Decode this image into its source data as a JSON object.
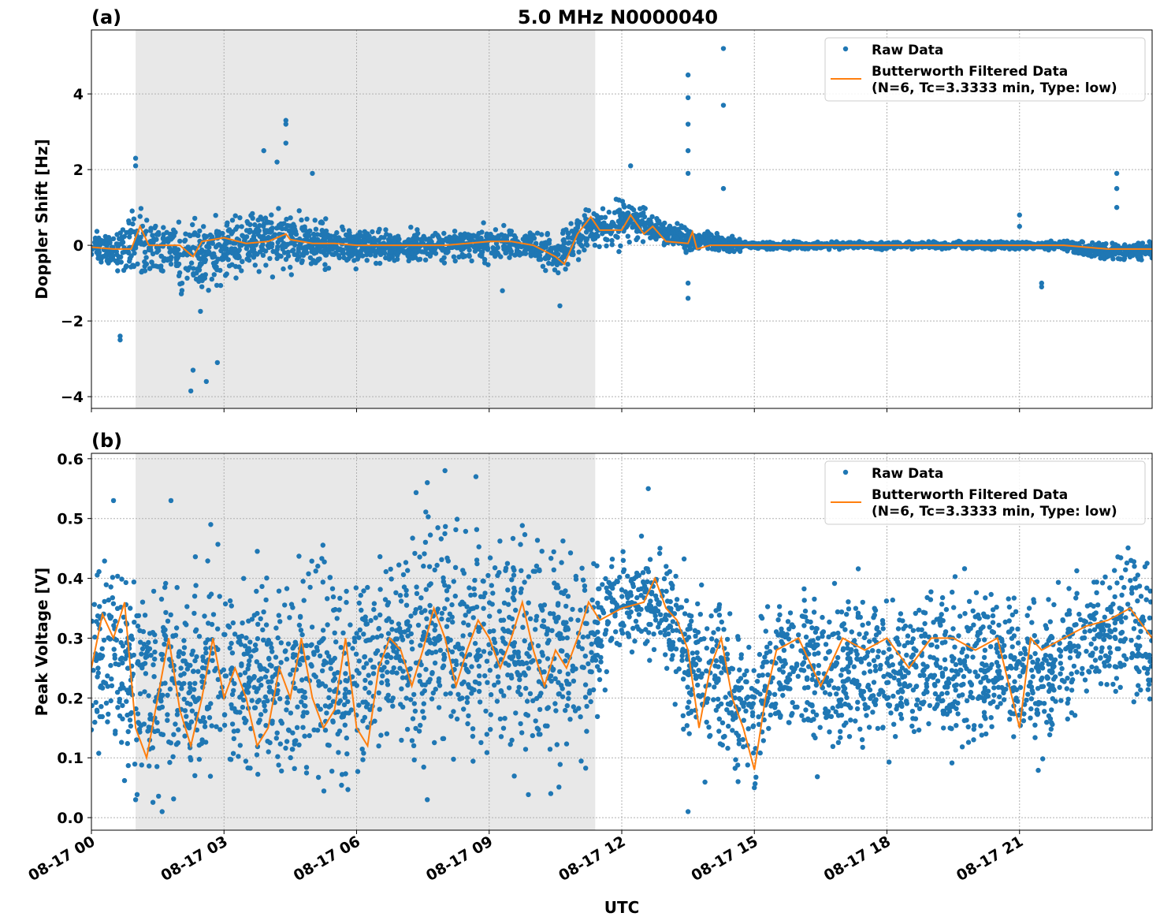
{
  "title": "5.0 MHz N0000040",
  "xlabel": "UTC",
  "colors": {
    "raw": "#1f77b4",
    "filtered": "#ff7f0e",
    "shade": "#e8e8e8"
  },
  "legend": {
    "raw": "Raw Data",
    "filtered_line1": "Butterworth Filtered Data",
    "filtered_line2": "(N=6, Tc=3.3333 min, Type: low)",
    "placement": "top-right"
  },
  "chart_data": [
    {
      "type": "scatter",
      "panel_label": "(a)",
      "ylabel": "Doppler Shift [Hz]",
      "x_unit": "hours UTC since 08-17 00",
      "xlim": [
        0,
        24
      ],
      "ylim": [
        -4.31,
        5.69
      ],
      "grid": true,
      "xticks": [
        {
          "v": 0,
          "label": "08-17 00"
        },
        {
          "v": 3,
          "label": "08-17 03"
        },
        {
          "v": 6,
          "label": "08-17 06"
        },
        {
          "v": 9,
          "label": "08-17 09"
        },
        {
          "v": 12,
          "label": "08-17 12"
        },
        {
          "v": 15,
          "label": "08-17 15"
        },
        {
          "v": 18,
          "label": "08-17 18"
        },
        {
          "v": 21,
          "label": "08-17 21"
        }
      ],
      "yticks": [
        {
          "v": -4,
          "label": "−4"
        },
        {
          "v": -2,
          "label": "−2"
        },
        {
          "v": 0,
          "label": "0"
        },
        {
          "v": 2,
          "label": "2"
        },
        {
          "v": 4,
          "label": "4"
        }
      ],
      "shaded_interval": [
        1.0,
        11.4
      ],
      "filtered": [
        [
          0,
          -0.05
        ],
        [
          0.5,
          -0.1
        ],
        [
          0.9,
          -0.1
        ],
        [
          1.1,
          0.5
        ],
        [
          1.3,
          0.0
        ],
        [
          1.5,
          0.0
        ],
        [
          2,
          0.0
        ],
        [
          2.3,
          -0.3
        ],
        [
          2.5,
          0.1
        ],
        [
          3,
          0.2
        ],
        [
          3.5,
          0.05
        ],
        [
          4,
          0.1
        ],
        [
          4.4,
          0.3
        ],
        [
          4.5,
          0.15
        ],
        [
          5,
          0.05
        ],
        [
          5.5,
          0.05
        ],
        [
          6,
          0.0
        ],
        [
          6.5,
          0.0
        ],
        [
          7,
          0.0
        ],
        [
          7.5,
          0.0
        ],
        [
          8,
          0.0
        ],
        [
          8.5,
          0.05
        ],
        [
          9,
          0.1
        ],
        [
          9.5,
          0.1
        ],
        [
          10,
          0.0
        ],
        [
          10.5,
          -0.3
        ],
        [
          10.7,
          -0.5
        ],
        [
          11,
          0.3
        ],
        [
          11.3,
          0.75
        ],
        [
          11.5,
          0.4
        ],
        [
          12,
          0.4
        ],
        [
          12.2,
          0.8
        ],
        [
          12.5,
          0.3
        ],
        [
          12.7,
          0.5
        ],
        [
          13,
          0.1
        ],
        [
          13.5,
          0.05
        ],
        [
          13.6,
          0.35
        ],
        [
          13.7,
          -0.1
        ],
        [
          14,
          0.0
        ],
        [
          14.5,
          0.0
        ],
        [
          15,
          0.0
        ],
        [
          16,
          0.0
        ],
        [
          17,
          0.0
        ],
        [
          18,
          0.0
        ],
        [
          19,
          0.0
        ],
        [
          20,
          0.0
        ],
        [
          21,
          0.0
        ],
        [
          22,
          0.0
        ],
        [
          22.5,
          -0.05
        ],
        [
          23,
          -0.1
        ],
        [
          23.5,
          -0.1
        ],
        [
          24,
          -0.1
        ]
      ],
      "raw_envelope": [
        [
          0,
          -0.5,
          0.4
        ],
        [
          0.5,
          -0.6,
          0.3
        ],
        [
          1,
          -1.0,
          1.0
        ],
        [
          1.5,
          -0.8,
          0.6
        ],
        [
          2,
          -1.2,
          0.7
        ],
        [
          2.5,
          -1.5,
          0.8
        ],
        [
          3,
          -1.0,
          0.8
        ],
        [
          3.5,
          -0.8,
          0.9
        ],
        [
          4,
          -0.7,
          1.0
        ],
        [
          4.5,
          -0.6,
          1.0
        ],
        [
          5,
          -0.6,
          0.7
        ],
        [
          5.5,
          -0.5,
          0.5
        ],
        [
          6,
          -0.5,
          0.5
        ],
        [
          6.5,
          -0.4,
          0.4
        ],
        [
          7,
          -0.5,
          0.4
        ],
        [
          7.5,
          -0.4,
          0.4
        ],
        [
          8,
          -0.4,
          0.4
        ],
        [
          8.5,
          -0.4,
          0.5
        ],
        [
          9,
          -0.4,
          0.5
        ],
        [
          9.5,
          -0.4,
          0.5
        ],
        [
          10,
          -0.5,
          0.4
        ],
        [
          10.5,
          -0.8,
          0.3
        ],
        [
          11,
          -0.3,
          0.8
        ],
        [
          11.5,
          0.0,
          0.9
        ],
        [
          12,
          -0.1,
          1.4
        ],
        [
          12.5,
          0.0,
          1.0
        ],
        [
          13,
          0.0,
          0.6
        ],
        [
          13.5,
          -0.2,
          0.5
        ],
        [
          14,
          -0.1,
          0.3
        ],
        [
          14.5,
          -0.2,
          0.2
        ],
        [
          15,
          -0.1,
          0.1
        ],
        [
          18,
          -0.1,
          0.1
        ],
        [
          21,
          -0.1,
          0.1
        ],
        [
          22,
          -0.1,
          0.1
        ],
        [
          22.5,
          -0.3,
          0.1
        ],
        [
          23,
          -0.4,
          0.1
        ],
        [
          24,
          -0.4,
          0.1
        ]
      ],
      "raw_outliers": [
        [
          1.0,
          2.3
        ],
        [
          1.0,
          2.1
        ],
        [
          0.65,
          -2.4
        ],
        [
          0.65,
          -2.5
        ],
        [
          2.25,
          -3.85
        ],
        [
          2.3,
          -3.3
        ],
        [
          2.6,
          -3.6
        ],
        [
          2.85,
          -3.1
        ],
        [
          3.9,
          2.5
        ],
        [
          4.4,
          3.3
        ],
        [
          4.4,
          3.2
        ],
        [
          4.4,
          2.7
        ],
        [
          4.2,
          2.2
        ],
        [
          5.0,
          1.9
        ],
        [
          9.3,
          -1.2
        ],
        [
          10.6,
          -1.6
        ],
        [
          12.2,
          2.1
        ],
        [
          13.5,
          4.5
        ],
        [
          13.5,
          3.9
        ],
        [
          13.5,
          3.2
        ],
        [
          13.5,
          2.5
        ],
        [
          13.5,
          1.9
        ],
        [
          13.5,
          -1.0
        ],
        [
          13.5,
          -1.4
        ],
        [
          14.3,
          5.2
        ],
        [
          14.3,
          3.7
        ],
        [
          14.3,
          1.5
        ],
        [
          21.0,
          0.8
        ],
        [
          21.0,
          0.5
        ],
        [
          21.5,
          -1.0
        ],
        [
          21.5,
          -1.1
        ],
        [
          23.2,
          1.9
        ],
        [
          23.2,
          1.5
        ],
        [
          23.2,
          1.0
        ]
      ]
    },
    {
      "type": "scatter",
      "panel_label": "(b)",
      "ylabel": "Peak Voltage [V]",
      "x_unit": "hours UTC since 08-17 00",
      "xlim": [
        0,
        24
      ],
      "ylim": [
        -0.021,
        0.609
      ],
      "grid": true,
      "xticks": [
        {
          "v": 0,
          "label": "08-17 00"
        },
        {
          "v": 3,
          "label": "08-17 03"
        },
        {
          "v": 6,
          "label": "08-17 06"
        },
        {
          "v": 9,
          "label": "08-17 09"
        },
        {
          "v": 12,
          "label": "08-17 12"
        },
        {
          "v": 15,
          "label": "08-17 15"
        },
        {
          "v": 18,
          "label": "08-17 18"
        },
        {
          "v": 21,
          "label": "08-17 21"
        }
      ],
      "yticks": [
        {
          "v": 0.0,
          "label": "0.0"
        },
        {
          "v": 0.1,
          "label": "0.1"
        },
        {
          "v": 0.2,
          "label": "0.2"
        },
        {
          "v": 0.3,
          "label": "0.3"
        },
        {
          "v": 0.4,
          "label": "0.4"
        },
        {
          "v": 0.5,
          "label": "0.5"
        },
        {
          "v": 0.6,
          "label": "0.6"
        }
      ],
      "shaded_interval": [
        1.0,
        11.4
      ],
      "filtered": [
        [
          0,
          0.25
        ],
        [
          0.25,
          0.34
        ],
        [
          0.5,
          0.3
        ],
        [
          0.75,
          0.36
        ],
        [
          1,
          0.15
        ],
        [
          1.25,
          0.1
        ],
        [
          1.5,
          0.2
        ],
        [
          1.75,
          0.3
        ],
        [
          2,
          0.18
        ],
        [
          2.25,
          0.12
        ],
        [
          2.5,
          0.2
        ],
        [
          2.75,
          0.3
        ],
        [
          3,
          0.2
        ],
        [
          3.25,
          0.25
        ],
        [
          3.5,
          0.2
        ],
        [
          3.75,
          0.12
        ],
        [
          4,
          0.15
        ],
        [
          4.25,
          0.25
        ],
        [
          4.5,
          0.2
        ],
        [
          4.75,
          0.3
        ],
        [
          5,
          0.2
        ],
        [
          5.25,
          0.15
        ],
        [
          5.5,
          0.18
        ],
        [
          5.75,
          0.3
        ],
        [
          6,
          0.15
        ],
        [
          6.25,
          0.12
        ],
        [
          6.5,
          0.25
        ],
        [
          6.75,
          0.3
        ],
        [
          7,
          0.28
        ],
        [
          7.25,
          0.22
        ],
        [
          7.5,
          0.28
        ],
        [
          7.75,
          0.35
        ],
        [
          8,
          0.3
        ],
        [
          8.25,
          0.22
        ],
        [
          8.5,
          0.28
        ],
        [
          8.75,
          0.33
        ],
        [
          9,
          0.3
        ],
        [
          9.25,
          0.25
        ],
        [
          9.5,
          0.3
        ],
        [
          9.75,
          0.36
        ],
        [
          10,
          0.28
        ],
        [
          10.25,
          0.22
        ],
        [
          10.5,
          0.28
        ],
        [
          10.75,
          0.25
        ],
        [
          11,
          0.3
        ],
        [
          11.25,
          0.36
        ],
        [
          11.5,
          0.33
        ],
        [
          12,
          0.35
        ],
        [
          12.5,
          0.36
        ],
        [
          12.75,
          0.4
        ],
        [
          13,
          0.35
        ],
        [
          13.25,
          0.33
        ],
        [
          13.5,
          0.28
        ],
        [
          13.75,
          0.15
        ],
        [
          14,
          0.25
        ],
        [
          14.25,
          0.3
        ],
        [
          14.5,
          0.2
        ],
        [
          14.75,
          0.15
        ],
        [
          15,
          0.08
        ],
        [
          15.25,
          0.2
        ],
        [
          15.5,
          0.28
        ],
        [
          16,
          0.3
        ],
        [
          16.5,
          0.22
        ],
        [
          17,
          0.3
        ],
        [
          17.5,
          0.28
        ],
        [
          18,
          0.3
        ],
        [
          18.5,
          0.25
        ],
        [
          19,
          0.3
        ],
        [
          19.5,
          0.3
        ],
        [
          20,
          0.28
        ],
        [
          20.5,
          0.3
        ],
        [
          21,
          0.15
        ],
        [
          21.25,
          0.3
        ],
        [
          21.5,
          0.28
        ],
        [
          22,
          0.3
        ],
        [
          22.5,
          0.32
        ],
        [
          23,
          0.33
        ],
        [
          23.5,
          0.35
        ],
        [
          24,
          0.3
        ]
      ],
      "raw_envelope": [
        [
          0,
          0.08,
          0.45
        ],
        [
          0.5,
          0.1,
          0.47
        ],
        [
          1,
          0.03,
          0.4
        ],
        [
          1.5,
          0.03,
          0.42
        ],
        [
          2,
          0.05,
          0.4
        ],
        [
          2.5,
          0.05,
          0.43
        ],
        [
          3,
          0.06,
          0.42
        ],
        [
          3.5,
          0.06,
          0.42
        ],
        [
          4,
          0.05,
          0.4
        ],
        [
          4.5,
          0.05,
          0.42
        ],
        [
          5,
          0.05,
          0.42
        ],
        [
          5.5,
          0.04,
          0.42
        ],
        [
          6,
          0.04,
          0.42
        ],
        [
          6.5,
          0.1,
          0.45
        ],
        [
          7,
          0.1,
          0.48
        ],
        [
          7.5,
          0.1,
          0.5
        ],
        [
          8,
          0.1,
          0.5
        ],
        [
          8.5,
          0.08,
          0.5
        ],
        [
          9,
          0.1,
          0.48
        ],
        [
          9.5,
          0.1,
          0.48
        ],
        [
          10,
          0.08,
          0.48
        ],
        [
          10.5,
          0.06,
          0.47
        ],
        [
          11,
          0.08,
          0.46
        ],
        [
          11.5,
          0.2,
          0.42
        ],
        [
          12,
          0.27,
          0.44
        ],
        [
          12.5,
          0.28,
          0.46
        ],
        [
          13,
          0.25,
          0.44
        ],
        [
          13.5,
          0.1,
          0.42
        ],
        [
          14,
          0.1,
          0.4
        ],
        [
          14.5,
          0.05,
          0.38
        ],
        [
          15,
          0.05,
          0.33
        ],
        [
          15.5,
          0.12,
          0.38
        ],
        [
          16,
          0.12,
          0.38
        ],
        [
          18,
          0.12,
          0.38
        ],
        [
          21,
          0.12,
          0.38
        ],
        [
          21.5,
          0.1,
          0.37
        ],
        [
          22,
          0.15,
          0.4
        ],
        [
          22.5,
          0.18,
          0.42
        ],
        [
          23,
          0.2,
          0.43
        ],
        [
          23.5,
          0.2,
          0.45
        ],
        [
          24,
          0.15,
          0.43
        ]
      ],
      "raw_outliers": [
        [
          0.5,
          0.53
        ],
        [
          1.8,
          0.53
        ],
        [
          7.6,
          0.56
        ],
        [
          8.0,
          0.58
        ],
        [
          8.7,
          0.57
        ],
        [
          12.6,
          0.55
        ],
        [
          13.5,
          0.01
        ],
        [
          15.0,
          0.05
        ],
        [
          2.7,
          0.49
        ],
        [
          1.0,
          0.03
        ],
        [
          7.6,
          0.03
        ],
        [
          1.6,
          0.01
        ]
      ]
    }
  ]
}
